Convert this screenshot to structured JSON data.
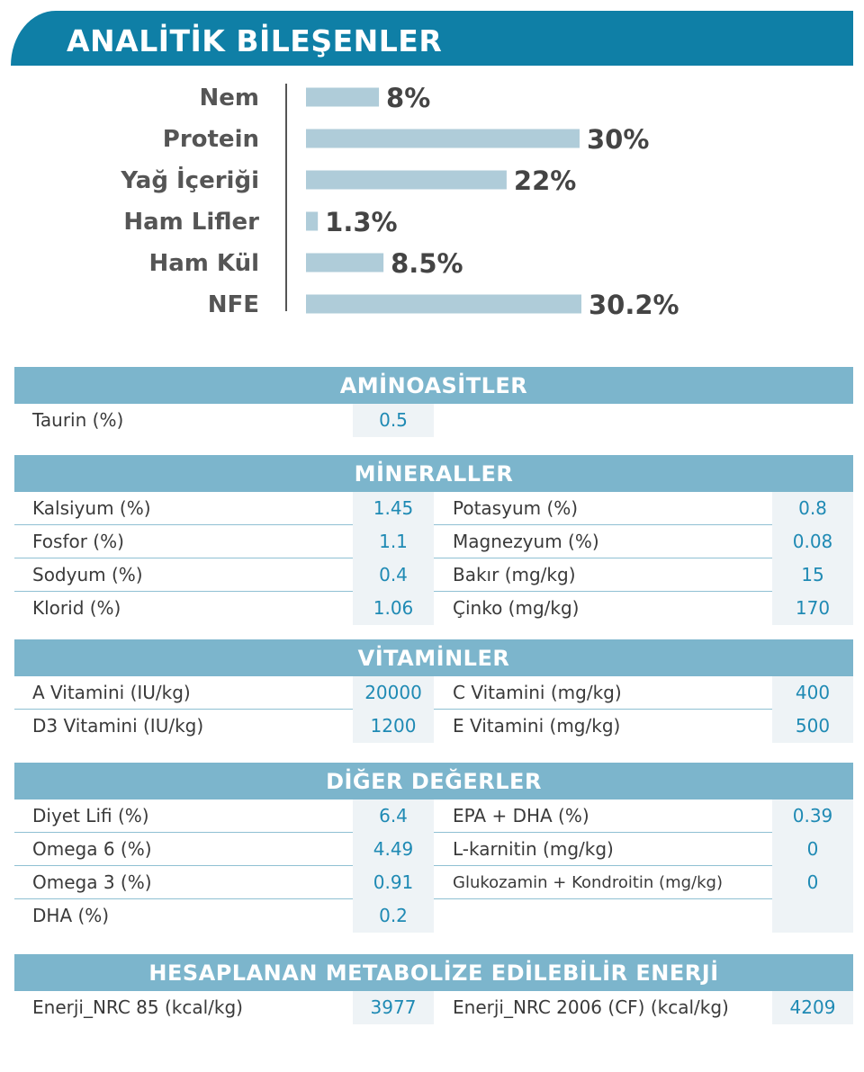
{
  "header": {
    "title": "ANALİTİK BİLEŞENLER"
  },
  "chart_data": {
    "type": "bar",
    "orientation": "horizontal",
    "categories": [
      "Nem",
      "Protein",
      "Yağ İçeriği",
      "Ham Lifler",
      "Ham Kül",
      "NFE"
    ],
    "values": [
      8,
      30,
      22,
      1.3,
      8.5,
      30.2
    ],
    "value_labels": [
      "8%",
      "30%",
      "22%",
      "1.3%",
      "8.5%",
      "30.2%"
    ],
    "xlim": [
      0,
      30.2
    ],
    "colors": {
      "bar": "#afccd9",
      "header": "#0f7fa6",
      "section": "#7cb5cc",
      "value_text": "#1f8ab4"
    }
  },
  "aminoacids": {
    "title": "AMİNOASİTLER",
    "rows": [
      {
        "label": "Taurin (%)",
        "value": "0.5"
      }
    ]
  },
  "minerals": {
    "title": "MİNERALLER",
    "rows": [
      {
        "left_label": "Kalsiyum (%)",
        "left_value": "1.45",
        "right_label": "Potasyum (%)",
        "right_value": "0.8"
      },
      {
        "left_label": "Fosfor (%)",
        "left_value": "1.1",
        "right_label": "Magnezyum (%)",
        "right_value": "0.08"
      },
      {
        "left_label": "Sodyum (%)",
        "left_value": "0.4",
        "right_label": "Bakır (mg/kg)",
        "right_value": "15"
      },
      {
        "left_label": "Klorid (%)",
        "left_value": "1.06",
        "right_label": "Çinko (mg/kg)",
        "right_value": "170"
      }
    ]
  },
  "vitamins": {
    "title": "VİTAMİNLER",
    "rows": [
      {
        "left_label": "A Vitamini (IU/kg)",
        "left_value": "20000",
        "right_label": "C Vitamini (mg/kg)",
        "right_value": "400"
      },
      {
        "left_label": "D3 Vitamini (IU/kg)",
        "left_value": "1200",
        "right_label": "E Vitamini (mg/kg)",
        "right_value": "500"
      }
    ]
  },
  "other": {
    "title": "DİĞER DEĞERLER",
    "rows": [
      {
        "left_label": "Diyet Lifi (%)",
        "left_value": "6.4",
        "right_label": "EPA + DHA (%)",
        "right_value": "0.39"
      },
      {
        "left_label": "Omega 6 (%)",
        "left_value": "4.49",
        "right_label": "L-karnitin (mg/kg)",
        "right_value": "0"
      },
      {
        "left_label": "Omega 3 (%)",
        "left_value": "0.91",
        "right_label": "Glukozamin + Kondroitin (mg/kg)",
        "right_value": "0"
      },
      {
        "left_label": "DHA (%)",
        "left_value": "0.2"
      }
    ]
  },
  "energy": {
    "title": "HESAPLANAN METABOLİZE EDİLEBİLİR ENERJİ",
    "rows": [
      {
        "left_label": "Enerji_NRC 85 (kcal/kg)",
        "left_value": "3977",
        "right_label": "Enerji_NRC 2006 (CF) (kcal/kg)",
        "right_value": "4209"
      }
    ]
  }
}
